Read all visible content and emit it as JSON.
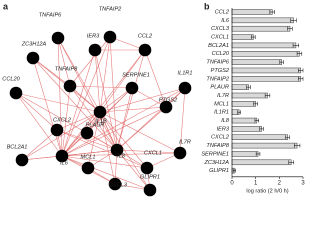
{
  "network": {
    "panel_label": "a",
    "nodes": [
      "TNFAIP2",
      "TNFAIP6",
      "ZC3H12A",
      "IER3",
      "CCL2",
      "CCL20",
      "TNFAIP8",
      "SERPINE1",
      "IL1R1",
      "IL1B",
      "PTGS2",
      "CXCL2",
      "PLAUR",
      "BCL2A1",
      "IL6",
      "IL8",
      "MCL1",
      "IL7R",
      "CXCL1",
      "CXCL3",
      "GLIPR1"
    ]
  },
  "chart_data": {
    "type": "bar",
    "orientation": "horizontal",
    "panel_label": "b",
    "categories": [
      "CCL2",
      "IL6",
      "CXCL3",
      "CXCL1",
      "BCL2A1",
      "CCL20",
      "TNFAIP6",
      "PTGS2",
      "TNFAIP2",
      "PLAUR",
      "IL7R",
      "MCL1",
      "IL1R1",
      "IL8",
      "IER3",
      "CXCL2",
      "TNFAIP8",
      "SERPINE1",
      "ZC3H12A",
      "GLIPR1"
    ],
    "values": [
      1.7,
      2.6,
      2.45,
      0.9,
      2.7,
      2.85,
      2.1,
      2.9,
      2.9,
      0.7,
      1.5,
      1.0,
      0.3,
      1.05,
      1.25,
      2.35,
      2.75,
      1.1,
      2.5,
      0.1
    ],
    "errors": [
      0.1,
      0.12,
      0.1,
      0.08,
      0.12,
      0.1,
      0.08,
      0.1,
      0.1,
      0.08,
      0.1,
      0.08,
      0.06,
      0.08,
      0.08,
      0.08,
      0.12,
      0.08,
      0.1,
      0.05
    ],
    "color": "#d9d9d9",
    "xlim": [
      0,
      3
    ],
    "xticks": [
      0,
      1,
      2,
      3
    ],
    "x_label": "log ratio (2 h/0 h)"
  }
}
